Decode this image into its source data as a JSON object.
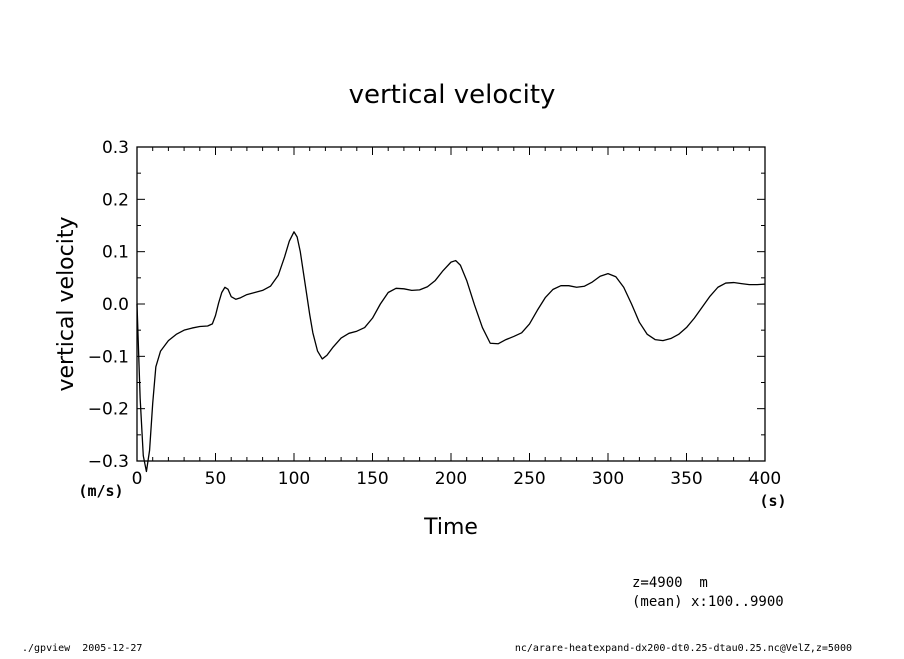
{
  "chart_data": {
    "type": "line",
    "title": "vertical velocity",
    "xlabel": "Time",
    "ylabel": "vertical velocity",
    "x_unit": "(s)",
    "y_unit": "(m/s)",
    "xlim": [
      0,
      400
    ],
    "ylim": [
      -0.3,
      0.3
    ],
    "x_ticks": [
      0,
      50,
      100,
      150,
      200,
      250,
      300,
      350,
      400
    ],
    "x_tick_labels": [
      "0",
      "50",
      "100",
      "150",
      "200",
      "250",
      "300",
      "350",
      "400"
    ],
    "y_ticks": [
      -0.3,
      -0.2,
      -0.1,
      0.0,
      0.1,
      0.2,
      0.3
    ],
    "y_tick_labels": [
      "−0.3",
      "−0.2",
      "−0.1",
      "0.0",
      "0.1",
      "0.2",
      "0.3"
    ],
    "grid": false,
    "series": [
      {
        "x": [
          0,
          2,
          4,
          6,
          8,
          10,
          12,
          15,
          20,
          25,
          30,
          35,
          40,
          45,
          48,
          50,
          52,
          54,
          56,
          58,
          60,
          63,
          66,
          70,
          75,
          80,
          85,
          90,
          94,
          97,
          100,
          102,
          104,
          106,
          108,
          110,
          112,
          115,
          118,
          121,
          125,
          130,
          135,
          140,
          145,
          150,
          155,
          160,
          165,
          170,
          175,
          180,
          185,
          190,
          195,
          200,
          203,
          206,
          210,
          215,
          220,
          225,
          230,
          235,
          240,
          245,
          250,
          255,
          260,
          265,
          270,
          275,
          280,
          285,
          290,
          295,
          300,
          305,
          310,
          315,
          320,
          325,
          330,
          335,
          340,
          345,
          350,
          355,
          360,
          365,
          370,
          375,
          380,
          385,
          390,
          395,
          400
        ],
        "y": [
          0.0,
          -0.18,
          -0.29,
          -0.32,
          -0.28,
          -0.19,
          -0.12,
          -0.09,
          -0.07,
          -0.058,
          -0.05,
          -0.046,
          -0.043,
          -0.042,
          -0.038,
          -0.022,
          0.002,
          0.022,
          0.032,
          0.028,
          0.014,
          0.009,
          0.012,
          0.018,
          0.022,
          0.026,
          0.034,
          0.055,
          0.09,
          0.12,
          0.138,
          0.128,
          0.1,
          0.06,
          0.02,
          -0.02,
          -0.055,
          -0.09,
          -0.105,
          -0.098,
          -0.082,
          -0.065,
          -0.056,
          -0.052,
          -0.045,
          -0.027,
          0.0,
          0.022,
          0.03,
          0.029,
          0.026,
          0.027,
          0.033,
          0.045,
          0.064,
          0.08,
          0.083,
          0.074,
          0.045,
          -0.002,
          -0.045,
          -0.075,
          -0.076,
          -0.068,
          -0.062,
          -0.055,
          -0.038,
          -0.012,
          0.012,
          0.028,
          0.035,
          0.035,
          0.032,
          0.034,
          0.042,
          0.053,
          0.058,
          0.052,
          0.032,
          0.0,
          -0.035,
          -0.058,
          -0.068,
          -0.07,
          -0.066,
          -0.058,
          -0.045,
          -0.027,
          -0.006,
          0.015,
          0.032,
          0.04,
          0.041,
          0.039,
          0.037,
          0.037,
          0.038
        ]
      }
    ],
    "annotations": [
      "z=4900  m",
      "(mean) x:100..9900"
    ]
  },
  "footer": {
    "left": "./gpview  2005-12-27",
    "right": "nc/arare-heatexpand-dx200-dt0.25-dtau0.25.nc@VelZ,z=5000"
  }
}
